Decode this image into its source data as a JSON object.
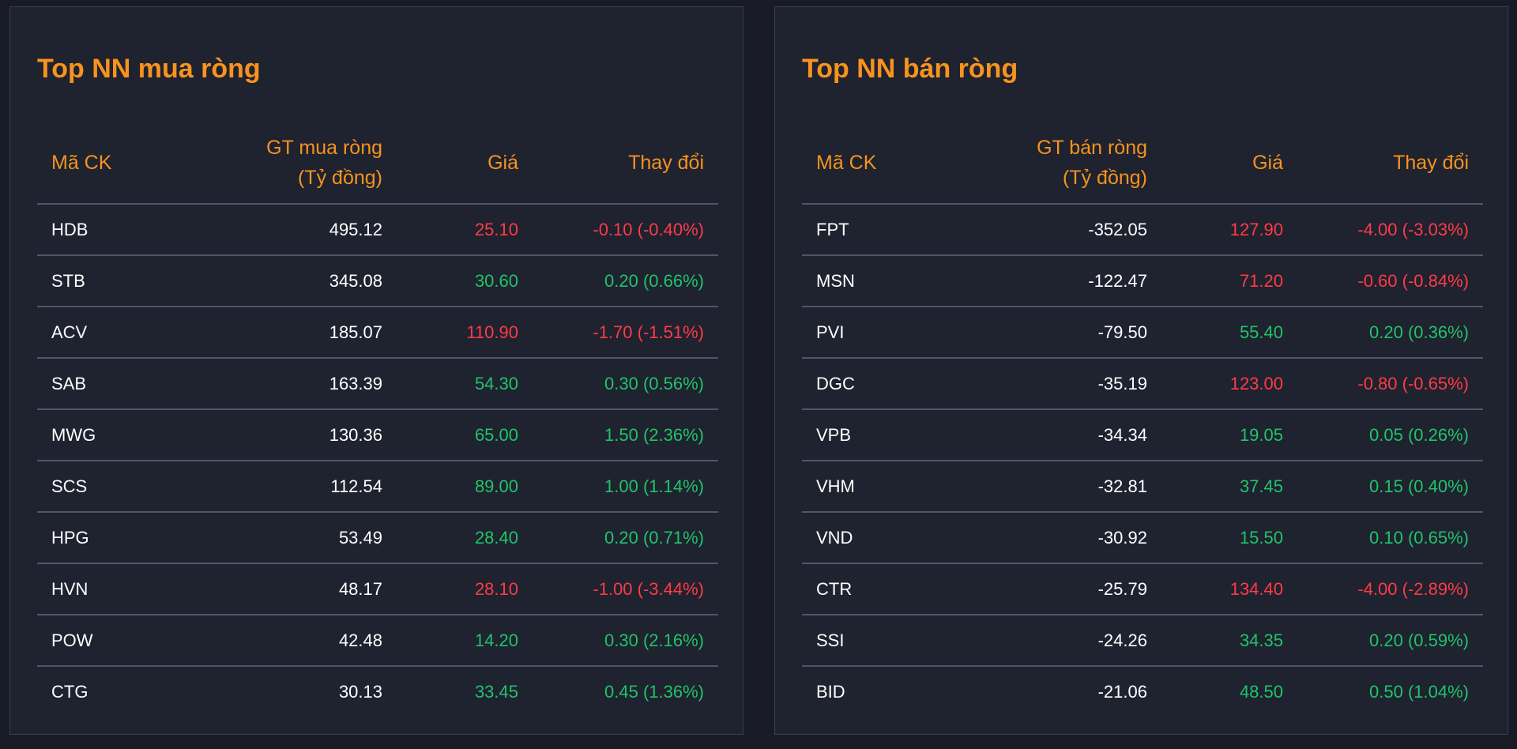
{
  "colors": {
    "accent": "#f7931e",
    "up": "#1fc46a",
    "down": "#ff3b47",
    "text": "#ffffff",
    "panel": "#1f222f",
    "background": "#181b26"
  },
  "buy": {
    "title": "Top NN mua ròng",
    "headers": {
      "symbol": "Mã CK",
      "value_line1": "GT mua ròng",
      "value_line2": "(Tỷ đồng)",
      "price": "Giá",
      "change": "Thay đổi"
    },
    "rows": [
      {
        "symbol": "HDB",
        "value": "495.12",
        "price": "25.10",
        "change": "-0.10 (-0.40%)",
        "trend": "down"
      },
      {
        "symbol": "STB",
        "value": "345.08",
        "price": "30.60",
        "change": "0.20 (0.66%)",
        "trend": "up"
      },
      {
        "symbol": "ACV",
        "value": "185.07",
        "price": "110.90",
        "change": "-1.70 (-1.51%)",
        "trend": "down"
      },
      {
        "symbol": "SAB",
        "value": "163.39",
        "price": "54.30",
        "change": "0.30 (0.56%)",
        "trend": "up"
      },
      {
        "symbol": "MWG",
        "value": "130.36",
        "price": "65.00",
        "change": "1.50 (2.36%)",
        "trend": "up"
      },
      {
        "symbol": "SCS",
        "value": "112.54",
        "price": "89.00",
        "change": "1.00 (1.14%)",
        "trend": "up"
      },
      {
        "symbol": "HPG",
        "value": "53.49",
        "price": "28.40",
        "change": "0.20 (0.71%)",
        "trend": "up"
      },
      {
        "symbol": "HVN",
        "value": "48.17",
        "price": "28.10",
        "change": "-1.00 (-3.44%)",
        "trend": "down"
      },
      {
        "symbol": "POW",
        "value": "42.48",
        "price": "14.20",
        "change": "0.30 (2.16%)",
        "trend": "up"
      },
      {
        "symbol": "CTG",
        "value": "30.13",
        "price": "33.45",
        "change": "0.45 (1.36%)",
        "trend": "up"
      }
    ]
  },
  "sell": {
    "title": "Top NN bán ròng",
    "headers": {
      "symbol": "Mã CK",
      "value_line1": "GT bán ròng",
      "value_line2": "(Tỷ đồng)",
      "price": "Giá",
      "change": "Thay đổi"
    },
    "rows": [
      {
        "symbol": "FPT",
        "value": "-352.05",
        "price": "127.90",
        "change": "-4.00 (-3.03%)",
        "trend": "down"
      },
      {
        "symbol": "MSN",
        "value": "-122.47",
        "price": "71.20",
        "change": "-0.60 (-0.84%)",
        "trend": "down"
      },
      {
        "symbol": "PVI",
        "value": "-79.50",
        "price": "55.40",
        "change": "0.20 (0.36%)",
        "trend": "up"
      },
      {
        "symbol": "DGC",
        "value": "-35.19",
        "price": "123.00",
        "change": "-0.80 (-0.65%)",
        "trend": "down"
      },
      {
        "symbol": "VPB",
        "value": "-34.34",
        "price": "19.05",
        "change": "0.05 (0.26%)",
        "trend": "up"
      },
      {
        "symbol": "VHM",
        "value": "-32.81",
        "price": "37.45",
        "change": "0.15 (0.40%)",
        "trend": "up"
      },
      {
        "symbol": "VND",
        "value": "-30.92",
        "price": "15.50",
        "change": "0.10 (0.65%)",
        "trend": "up"
      },
      {
        "symbol": "CTR",
        "value": "-25.79",
        "price": "134.40",
        "change": "-4.00 (-2.89%)",
        "trend": "down"
      },
      {
        "symbol": "SSI",
        "value": "-24.26",
        "price": "34.35",
        "change": "0.20 (0.59%)",
        "trend": "up"
      },
      {
        "symbol": "BID",
        "value": "-21.06",
        "price": "48.50",
        "change": "0.50 (1.04%)",
        "trend": "up"
      }
    ]
  }
}
